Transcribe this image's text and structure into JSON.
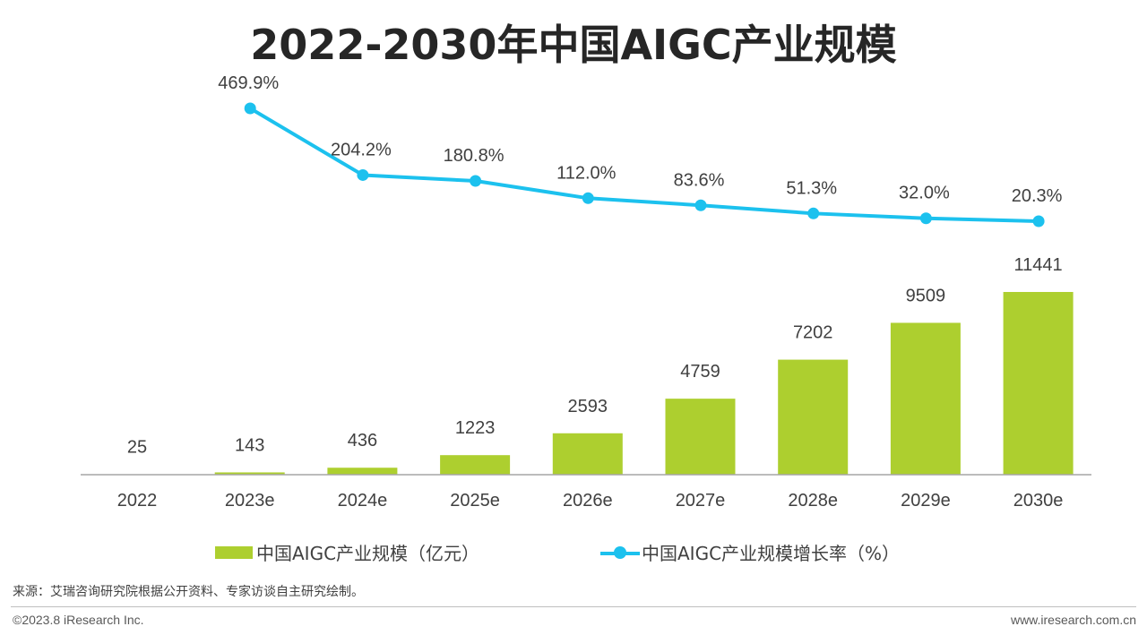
{
  "title": "2022-2030年中国AIGC产业规模",
  "colors": {
    "bar": "#adcf2f",
    "line": "#1cc1ee",
    "axis": "#a6a6a6",
    "text": "#404040"
  },
  "chart_data": {
    "type": "bar+line",
    "categories": [
      "2022",
      "2023e",
      "2024e",
      "2025e",
      "2026e",
      "2027e",
      "2028e",
      "2029e",
      "2030e"
    ],
    "series": [
      {
        "name": "中国AIGC产业规模（亿元）",
        "type": "bar",
        "values": [
          25,
          143,
          436,
          1223,
          2593,
          4759,
          7202,
          9509,
          11441
        ]
      },
      {
        "name": "中国AIGC产业规模增长率（%）",
        "type": "line",
        "values": [
          null,
          469.9,
          204.2,
          180.8,
          112.0,
          83.6,
          51.3,
          32.0,
          20.3
        ]
      }
    ],
    "bar_labels": [
      "25",
      "143",
      "436",
      "1223",
      "2593",
      "4759",
      "7202",
      "9509",
      "11441"
    ],
    "line_labels": [
      null,
      "469.9%",
      "204.2%",
      "180.8%",
      "112.0%",
      "83.6%",
      "51.3%",
      "32.0%",
      "20.3%"
    ],
    "legend_position": "bottom"
  },
  "legend": {
    "bar_label": "中国AIGC产业规模（亿元）",
    "line_label": "中国AIGC产业规模增长率（%）"
  },
  "footer": {
    "source": "来源：艾瑞咨询研究院根据公开资料、专家访谈自主研究绘制。",
    "copyright": "©2023.8 iResearch Inc.",
    "website": "www.iresearch.com.cn"
  }
}
